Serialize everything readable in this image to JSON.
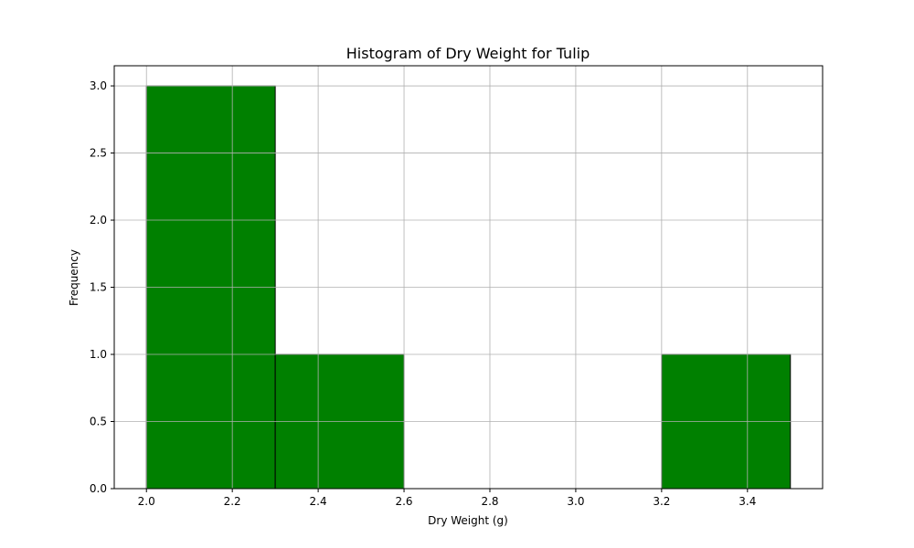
{
  "chart_data": {
    "type": "bar",
    "title": "Histogram of Dry Weight for Tulip",
    "xlabel": "Dry Weight (g)",
    "ylabel": "Frequency",
    "bins": [
      {
        "x0": 2.0,
        "x1": 2.3,
        "count": 3
      },
      {
        "x0": 2.3,
        "x1": 2.6,
        "count": 1
      },
      {
        "x0": 2.6,
        "x1": 2.9,
        "count": 0
      },
      {
        "x0": 2.9,
        "x1": 3.2,
        "count": 0
      },
      {
        "x0": 3.2,
        "x1": 3.5,
        "count": 1
      }
    ],
    "xlim": [
      1.925,
      3.575
    ],
    "ylim": [
      0,
      3.15
    ],
    "xticks": [
      "2.0",
      "2.2",
      "2.4",
      "2.6",
      "2.8",
      "3.0",
      "3.2",
      "3.4"
    ],
    "yticks": [
      "0.0",
      "0.5",
      "1.0",
      "1.5",
      "2.0",
      "2.5",
      "3.0"
    ],
    "grid": true,
    "bar_color": "#008000",
    "edge_color": "#000000",
    "grid_color": "#b0b0b0"
  }
}
